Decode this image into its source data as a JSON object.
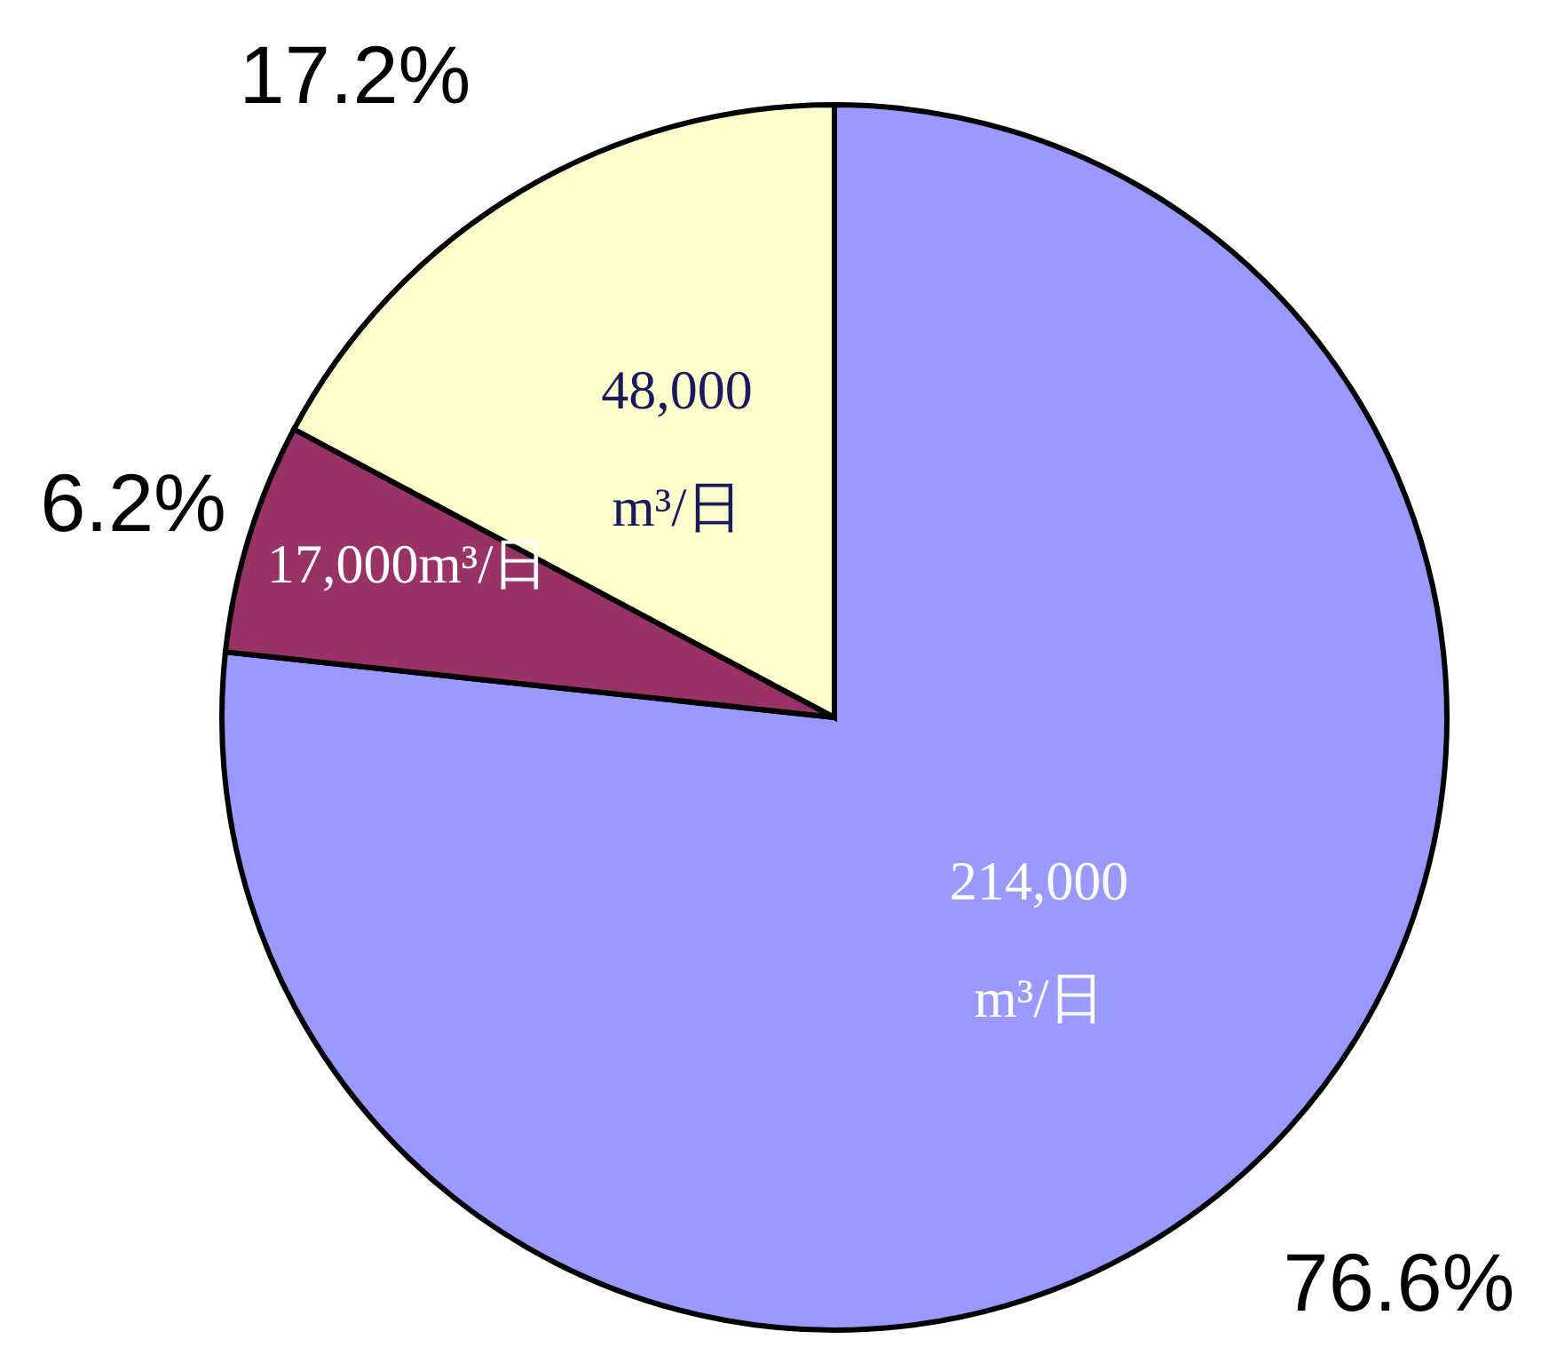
{
  "chart_data": {
    "type": "pie",
    "categories": [
      null,
      null,
      null
    ],
    "values": [
      214000,
      17000,
      48000
    ],
    "colors": [
      "#9999ff",
      "#993366",
      "#ffffcc"
    ],
    "value_labels": [
      "214,000\nm³/日",
      "17,000m³/日",
      "48,000\nm³/日"
    ],
    "annotations": [
      "76.6%",
      "6.2%",
      "17.2%"
    ]
  }
}
